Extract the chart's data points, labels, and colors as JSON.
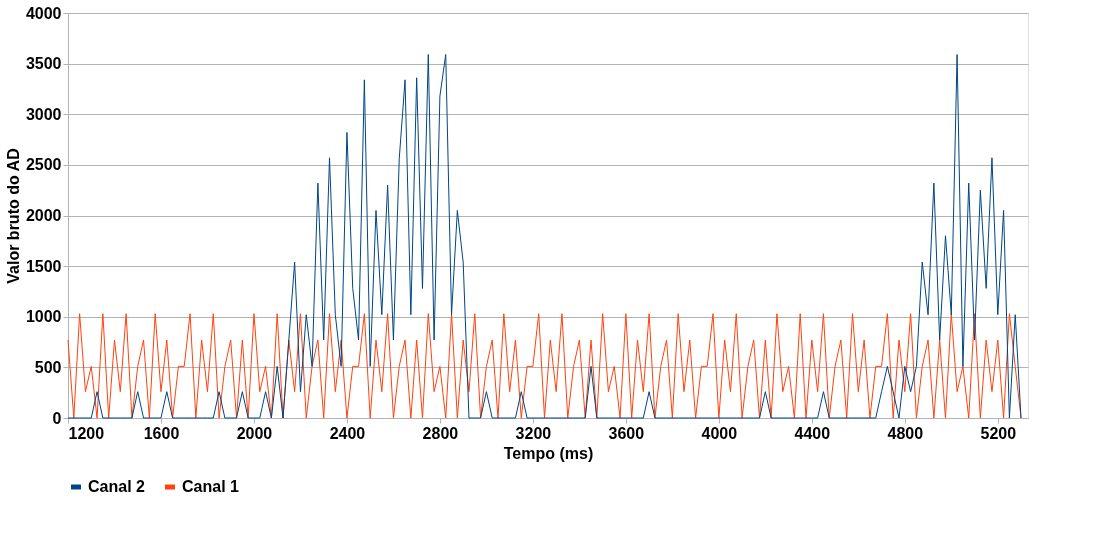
{
  "chart_data": {
    "type": "line",
    "xlabel": "Tempo (ms)",
    "ylabel": "Valor bruto do AD",
    "x": [
      1200,
      1225,
      1250,
      1275,
      1300,
      1325,
      1350,
      1375,
      1400,
      1425,
      1450,
      1475,
      1500,
      1525,
      1550,
      1575,
      1600,
      1625,
      1650,
      1675,
      1700,
      1725,
      1750,
      1775,
      1800,
      1825,
      1850,
      1875,
      1900,
      1925,
      1950,
      1975,
      2000,
      2025,
      2050,
      2075,
      2100,
      2125,
      2150,
      2175,
      2200,
      2225,
      2250,
      2275,
      2300,
      2325,
      2350,
      2375,
      2400,
      2425,
      2450,
      2475,
      2500,
      2525,
      2550,
      2575,
      2600,
      2625,
      2650,
      2675,
      2700,
      2725,
      2750,
      2775,
      2800,
      2825,
      2850,
      2875,
      2900,
      2925,
      2950,
      2975,
      3000,
      3025,
      3050,
      3075,
      3100,
      3125,
      3150,
      3175,
      3200,
      3225,
      3250,
      3275,
      3300,
      3325,
      3350,
      3375,
      3400,
      3425,
      3450,
      3475,
      3500,
      3525,
      3550,
      3575,
      3600,
      3625,
      3650,
      3675,
      3700,
      3725,
      3750,
      3775,
      3800,
      3825,
      3850,
      3875,
      3900,
      3925,
      3950,
      3975,
      4000,
      4025,
      4050,
      4075,
      4100,
      4125,
      4150,
      4175,
      4200,
      4225,
      4250,
      4275,
      4300,
      4325,
      4350,
      4375,
      4400,
      4425,
      4450,
      4475,
      4500,
      4525,
      4550,
      4575,
      4600,
      4625,
      4650,
      4675,
      4700,
      4725,
      4750,
      4775,
      4800,
      4825,
      4850,
      4875,
      4900,
      4925,
      4950,
      4975,
      5000,
      5025,
      5050,
      5075,
      5100,
      5125,
      5150,
      5175,
      5200,
      5225,
      5250,
      5275,
      5300
    ],
    "series": [
      {
        "name": "Canal 2",
        "color": "#004586",
        "values": [
          0,
          0,
          0,
          0,
          0,
          260,
          0,
          0,
          0,
          0,
          0,
          0,
          260,
          0,
          0,
          0,
          0,
          260,
          0,
          0,
          0,
          0,
          0,
          0,
          0,
          0,
          260,
          0,
          0,
          0,
          260,
          0,
          0,
          0,
          260,
          0,
          510,
          0,
          770,
          1540,
          260,
          1020,
          510,
          2320,
          770,
          2570,
          1020,
          510,
          2820,
          1280,
          770,
          3340,
          510,
          2050,
          1020,
          2300,
          770,
          2560,
          3340,
          1020,
          3360,
          1280,
          3590,
          770,
          3180,
          3590,
          1020,
          2050,
          1540,
          0,
          0,
          0,
          260,
          0,
          0,
          0,
          0,
          0,
          260,
          0,
          0,
          0,
          0,
          0,
          0,
          0,
          0,
          0,
          0,
          0,
          510,
          0,
          0,
          0,
          0,
          0,
          0,
          0,
          0,
          0,
          260,
          0,
          0,
          0,
          0,
          0,
          0,
          0,
          0,
          0,
          0,
          0,
          0,
          0,
          0,
          0,
          0,
          0,
          0,
          0,
          260,
          0,
          0,
          0,
          0,
          0,
          0,
          0,
          0,
          0,
          260,
          0,
          0,
          0,
          0,
          0,
          0,
          0,
          0,
          0,
          260,
          510,
          260,
          0,
          510,
          260,
          510,
          1540,
          1020,
          2320,
          770,
          1800,
          1020,
          3590,
          510,
          2320,
          770,
          2250,
          1280,
          2570,
          1020,
          2050,
          0,
          1020,
          0
        ]
      },
      {
        "name": "Canal 1",
        "color": "#ff420e",
        "values": [
          770,
          0,
          1030,
          260,
          510,
          0,
          1030,
          0,
          770,
          260,
          1030,
          0,
          510,
          770,
          0,
          1030,
          260,
          770,
          0,
          510,
          510,
          1030,
          0,
          770,
          260,
          1030,
          0,
          510,
          770,
          0,
          770,
          0,
          1030,
          260,
          510,
          0,
          1030,
          0,
          770,
          260,
          1030,
          0,
          510,
          770,
          0,
          1030,
          260,
          770,
          0,
          510,
          510,
          1030,
          0,
          770,
          260,
          1030,
          0,
          510,
          770,
          0,
          770,
          0,
          1030,
          260,
          510,
          0,
          1030,
          0,
          770,
          260,
          1030,
          0,
          510,
          770,
          0,
          1030,
          260,
          770,
          0,
          510,
          510,
          1030,
          0,
          770,
          260,
          1030,
          0,
          510,
          770,
          0,
          770,
          0,
          1030,
          260,
          510,
          0,
          1030,
          0,
          770,
          260,
          1030,
          0,
          510,
          770,
          0,
          1030,
          260,
          770,
          0,
          510,
          510,
          1030,
          0,
          770,
          260,
          1030,
          0,
          510,
          770,
          0,
          770,
          0,
          1030,
          260,
          510,
          0,
          1030,
          0,
          770,
          260,
          1030,
          0,
          510,
          770,
          0,
          1030,
          260,
          770,
          0,
          510,
          510,
          1030,
          0,
          770,
          260,
          1030,
          0,
          510,
          770,
          0,
          770,
          0,
          1030,
          260,
          510,
          0,
          1030,
          0,
          770,
          260,
          770,
          0,
          1030,
          510,
          0
        ]
      }
    ],
    "xlim": [
      1200,
      5330
    ],
    "xticks": [
      1200,
      1600,
      2000,
      2400,
      2800,
      3200,
      3600,
      4000,
      4400,
      4800,
      5200
    ],
    "ylim": [
      0,
      4000
    ],
    "yticks": [
      0,
      500,
      1000,
      1500,
      2000,
      2500,
      3000,
      3500,
      4000
    ],
    "grid": "y",
    "legend": "bottom",
    "line_style": "solid"
  }
}
